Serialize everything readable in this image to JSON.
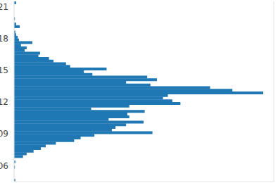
{
  "chart_data": {
    "type": "histogram",
    "orientation": "horizontal",
    "color": "#1f77b4",
    "grid": true,
    "tick_labels": "y",
    "bins": [
      4.5,
      4.75,
      5,
      5.25,
      5.5,
      5.75,
      6,
      6.25,
      6.5,
      6.75,
      7,
      7.25,
      7.5,
      7.75,
      8,
      8.25,
      8.5,
      8.75,
      9,
      9.25,
      9.5,
      9.75,
      10,
      10.25,
      10.5,
      10.75,
      11,
      11.25,
      11.5,
      11.75,
      12,
      12.25,
      12.5,
      12.75,
      13,
      13.25,
      13.5,
      13.75,
      14,
      14.25,
      14.5,
      14.75,
      15,
      15.25,
      15.5,
      15.75,
      16,
      16.25,
      16.5,
      16.75,
      17,
      17.25,
      17.5,
      17.75,
      18,
      18.25,
      18.5,
      18.75,
      19,
      19.25,
      19.5,
      19.75,
      20,
      20.25,
      20.5,
      20.75,
      21,
      21.25,
      21.5
    ],
    "values": [
      0.3,
      0,
      0,
      0,
      0,
      0.2,
      0,
      0.3,
      0,
      2.2,
      3.1,
      4.8,
      6.6,
      7.8,
      10.3,
      14.8,
      16.4,
      19.8,
      34.1,
      24.1,
      25,
      27.6,
      31.9,
      23.3,
      28.4,
      27.9,
      32.2,
      19,
      28.4,
      41,
      39,
      36.7,
      37.9,
      61.4,
      53.8,
      48.3,
      33.6,
      27.6,
      35.2,
      32.8,
      19.3,
      17.2,
      22.8,
      13.8,
      12.8,
      9.7,
      8.6,
      6,
      6.4,
      2.6,
      3.1,
      1.7,
      4.5,
      1.2,
      0.9,
      0.5,
      0.3,
      0,
      1.4,
      0.5,
      0,
      0.2,
      0,
      0,
      0,
      0,
      0,
      0.5
    ],
    "xlim": [
      0,
      64
    ],
    "xticks": [
      0,
      20,
      40,
      60
    ],
    "ylim": [
      4.5,
      21.5
    ],
    "yticks": [
      {
        "value": 6,
        "label": "06"
      },
      {
        "value": 9,
        "label": "09"
      },
      {
        "value": 12,
        "label": "12"
      },
      {
        "value": 15,
        "label": "15"
      },
      {
        "value": 18,
        "label": "18"
      },
      {
        "value": 21,
        "label": "21"
      }
    ]
  }
}
